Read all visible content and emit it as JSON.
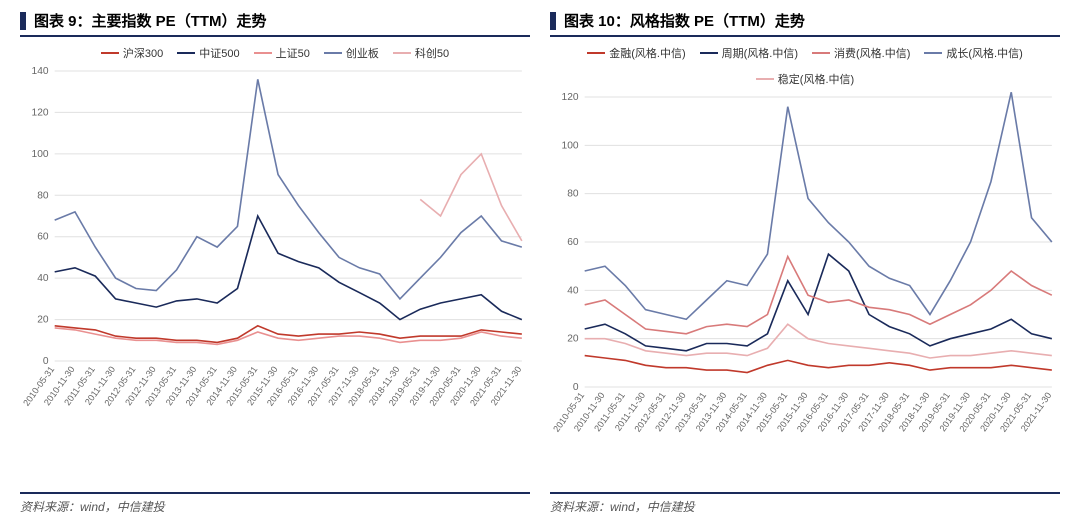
{
  "panels": [
    {
      "title": "图表 9：主要指数 PE（TTM）走势",
      "source": "资料来源：wind，中信建投",
      "chart": {
        "type": "line",
        "ylim": [
          0,
          140
        ],
        "ytick_step": 20,
        "background_color": "#ffffff",
        "grid_color": "#e0e0e0",
        "label_fontsize": 10,
        "line_width": 1.6,
        "x_labels": [
          "2010-05-31",
          "2010-11-30",
          "2011-05-31",
          "2011-11-30",
          "2012-05-31",
          "2012-11-30",
          "2013-05-31",
          "2013-11-30",
          "2014-05-31",
          "2014-11-30",
          "2015-05-31",
          "2015-11-30",
          "2016-05-31",
          "2016-11-30",
          "2017-05-31",
          "2017-11-30",
          "2018-05-31",
          "2018-11-30",
          "2019-05-31",
          "2019-11-30",
          "2020-05-31",
          "2020-11-30",
          "2021-05-31",
          "2021-11-30"
        ],
        "series": [
          {
            "name": "沪深300",
            "color": "#c0392b",
            "values": [
              17,
              16,
              15,
              12,
              11,
              11,
              10,
              10,
              9,
              11,
              17,
              13,
              12,
              13,
              13,
              14,
              13,
              11,
              12,
              12,
              12,
              15,
              14,
              13
            ]
          },
          {
            "name": "中证500",
            "color": "#1a2a5a",
            "values": [
              43,
              45,
              41,
              30,
              28,
              26,
              29,
              30,
              28,
              35,
              70,
              52,
              48,
              45,
              38,
              33,
              28,
              20,
              25,
              28,
              30,
              32,
              24,
              20
            ]
          },
          {
            "name": "上证50",
            "color": "#e99090",
            "values": [
              16,
              15,
              13,
              11,
              10,
              10,
              9,
              9,
              8,
              10,
              14,
              11,
              10,
              11,
              12,
              12,
              11,
              9,
              10,
              10,
              11,
              14,
              12,
              11
            ]
          },
          {
            "name": "创业板",
            "color": "#6a7ba8",
            "values": [
              68,
              72,
              55,
              40,
              35,
              34,
              44,
              60,
              55,
              65,
              136,
              90,
              75,
              62,
              50,
              45,
              42,
              30,
              40,
              50,
              62,
              70,
              58,
              55
            ]
          },
          {
            "name": "科创50",
            "color": "#e8aeb0",
            "values": [
              null,
              null,
              null,
              null,
              null,
              null,
              null,
              null,
              null,
              null,
              null,
              null,
              null,
              null,
              null,
              null,
              null,
              null,
              78,
              70,
              90,
              100,
              75,
              58
            ]
          }
        ]
      }
    },
    {
      "title": "图表 10：风格指数 PE（TTM）走势",
      "source": "资料来源：wind，中信建投",
      "chart": {
        "type": "line",
        "ylim": [
          0,
          120
        ],
        "ytick_step": 20,
        "background_color": "#ffffff",
        "grid_color": "#e0e0e0",
        "label_fontsize": 10,
        "line_width": 1.6,
        "x_labels": [
          "2010-05-31",
          "2010-11-30",
          "2011-05-31",
          "2011-11-30",
          "2012-05-31",
          "2012-11-30",
          "2013-05-31",
          "2013-11-30",
          "2014-05-31",
          "2014-11-30",
          "2015-05-31",
          "2015-11-30",
          "2016-05-31",
          "2016-11-30",
          "2017-05-31",
          "2017-11-30",
          "2018-05-31",
          "2018-11-30",
          "2019-05-31",
          "2019-11-30",
          "2020-05-31",
          "2020-11-30",
          "2021-05-31",
          "2021-11-30"
        ],
        "series": [
          {
            "name": "金融(风格.中信)",
            "color": "#c0392b",
            "values": [
              13,
              12,
              11,
              9,
              8,
              8,
              7,
              7,
              6,
              9,
              11,
              9,
              8,
              9,
              9,
              10,
              9,
              7,
              8,
              8,
              8,
              9,
              8,
              7
            ]
          },
          {
            "name": "周期(风格.中信)",
            "color": "#1a2a5a",
            "values": [
              24,
              26,
              22,
              17,
              16,
              15,
              18,
              18,
              17,
              22,
              44,
              30,
              55,
              48,
              30,
              25,
              22,
              17,
              20,
              22,
              24,
              28,
              22,
              20
            ]
          },
          {
            "name": "消费(风格.中信)",
            "color": "#d87a7a",
            "values": [
              34,
              36,
              30,
              24,
              23,
              22,
              25,
              26,
              25,
              30,
              54,
              38,
              35,
              36,
              33,
              32,
              30,
              26,
              30,
              34,
              40,
              48,
              42,
              38
            ]
          },
          {
            "name": "成长(风格.中信)",
            "color": "#6a7ba8",
            "values": [
              48,
              50,
              42,
              32,
              30,
              28,
              36,
              44,
              42,
              55,
              116,
              78,
              68,
              60,
              50,
              45,
              42,
              30,
              44,
              60,
              85,
              122,
              70,
              60
            ]
          },
          {
            "name": "稳定(风格.中信)",
            "color": "#e8aeb0",
            "values": [
              20,
              20,
              18,
              15,
              14,
              13,
              14,
              14,
              13,
              16,
              26,
              20,
              18,
              17,
              16,
              15,
              14,
              12,
              13,
              13,
              14,
              15,
              14,
              13
            ]
          }
        ]
      }
    }
  ],
  "style": {
    "accent_color": "#1a2a5a",
    "title_fontsize": 15,
    "footer_fontsize": 12,
    "footer_color": "#555555"
  }
}
